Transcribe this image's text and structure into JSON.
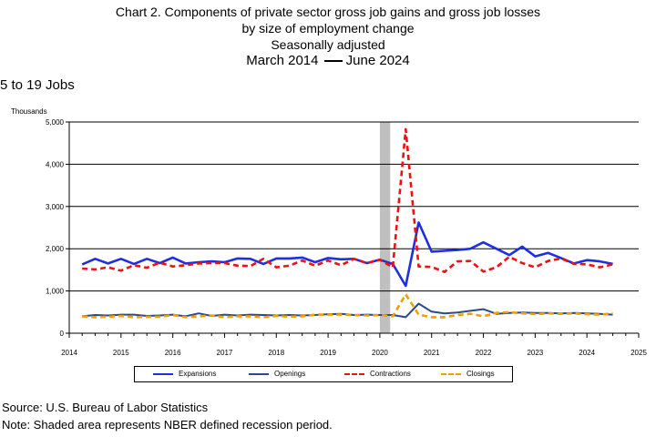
{
  "header": {
    "title_line1": "Chart 2. Components of private sector gross job gains and gross job losses",
    "title_line2": "by size of employment change",
    "title_line3": "Seasonally adjusted",
    "period_start": "March 2014",
    "period_end": "June 2024"
  },
  "section_label": "5 to 19 Jobs",
  "units_label": "Thousands",
  "footer": {
    "source": "Source: U.S. Bureau of Labor Statistics",
    "note": "Note: Shaded area represents NBER defined recession period."
  },
  "chart_data": {
    "type": "line",
    "ylim": [
      0,
      5000
    ],
    "y_ticks": [
      0,
      1000,
      2000,
      3000,
      4000,
      5000
    ],
    "y_tick_labels": [
      "0",
      "1,000",
      "2,000",
      "3,000",
      "4,000",
      "5,000"
    ],
    "xlim": [
      2014,
      2025
    ],
    "x_ticks": [
      2014,
      2015,
      2016,
      2017,
      2018,
      2019,
      2020,
      2021,
      2022,
      2023,
      2024,
      2025
    ],
    "x_tick_labels": [
      "2014",
      "2015",
      "2016",
      "2017",
      "2018",
      "2019",
      "2020",
      "2021",
      "2022",
      "2023",
      "2024",
      "2025"
    ],
    "grid": "horizontal",
    "legend_placement": "bottom",
    "recession": {
      "start": 2020.0,
      "end": 2020.2,
      "color": "#c0c0c0"
    },
    "x": [
      2014.25,
      2014.5,
      2014.75,
      2015.0,
      2015.25,
      2015.5,
      2015.75,
      2016.0,
      2016.25,
      2016.5,
      2016.75,
      2017.0,
      2017.25,
      2017.5,
      2017.75,
      2018.0,
      2018.25,
      2018.5,
      2018.75,
      2019.0,
      2019.25,
      2019.5,
      2019.75,
      2020.0,
      2020.25,
      2020.5,
      2020.75,
      2021.0,
      2021.25,
      2021.5,
      2021.75,
      2022.0,
      2022.25,
      2022.5,
      2022.75,
      2023.0,
      2023.25,
      2023.5,
      2023.75,
      2024.0,
      2024.25,
      2024.5
    ],
    "series": [
      {
        "name": "Expansions",
        "color": "#1f2fe0",
        "style": "solid",
        "width": 2.6,
        "values": [
          1630,
          1760,
          1650,
          1760,
          1640,
          1760,
          1660,
          1790,
          1650,
          1680,
          1700,
          1680,
          1770,
          1760,
          1640,
          1770,
          1770,
          1790,
          1680,
          1780,
          1750,
          1760,
          1660,
          1740,
          1640,
          1120,
          2620,
          1930,
          1950,
          1970,
          2000,
          2150,
          2000,
          1850,
          2050,
          1820,
          1900,
          1780,
          1650,
          1730,
          1700,
          1640
        ]
      },
      {
        "name": "Openings",
        "color": "#2a4a8c",
        "style": "solid",
        "width": 2.0,
        "values": [
          400,
          430,
          420,
          440,
          440,
          410,
          420,
          440,
          400,
          470,
          410,
          440,
          420,
          440,
          430,
          420,
          430,
          420,
          430,
          450,
          460,
          430,
          440,
          430,
          430,
          380,
          700,
          510,
          470,
          490,
          530,
          570,
          460,
          480,
          490,
          480,
          480,
          470,
          480,
          470,
          460,
          440
        ]
      },
      {
        "name": "Contractions",
        "color": "#ee1111",
        "style": "dashed",
        "width": 2.6,
        "values": [
          1530,
          1510,
          1560,
          1480,
          1610,
          1550,
          1670,
          1580,
          1610,
          1650,
          1660,
          1660,
          1600,
          1590,
          1760,
          1560,
          1600,
          1720,
          1600,
          1720,
          1610,
          1760,
          1660,
          1740,
          1560,
          4830,
          1580,
          1570,
          1450,
          1700,
          1710,
          1460,
          1560,
          1810,
          1660,
          1560,
          1710,
          1770,
          1640,
          1630,
          1560,
          1630
        ]
      },
      {
        "name": "Closings",
        "color": "#f0a000",
        "style": "dashed",
        "width": 2.6,
        "values": [
          400,
          380,
          390,
          410,
          380,
          390,
          390,
          430,
          380,
          400,
          420,
          380,
          400,
          400,
          380,
          410,
          390,
          400,
          440,
          440,
          440,
          430,
          420,
          430,
          400,
          920,
          440,
          380,
          380,
          430,
          460,
          400,
          480,
          500,
          470,
          450,
          470,
          460,
          470,
          450,
          440,
          470
        ]
      }
    ]
  }
}
